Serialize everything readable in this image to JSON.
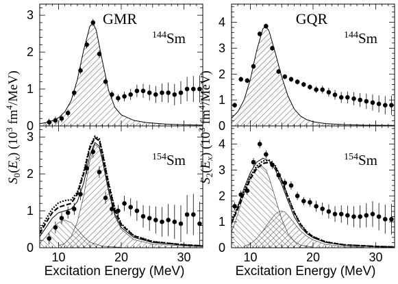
{
  "chart_data": [
    {
      "type": "scatter",
      "panel": "top-left",
      "title": "GMR",
      "annotation": {
        "mass": "144",
        "element": "Sm"
      },
      "xlim": [
        7,
        33
      ],
      "ylim": [
        0,
        3.3
      ],
      "yticks": [
        "0",
        "1",
        "2",
        "3"
      ],
      "series": [
        {
          "name": "",
          "kind": "points",
          "x": [
            8.5,
            9.5,
            10.5,
            11.5,
            12.5,
            13.5,
            14.5,
            15.5,
            16.5,
            17.5,
            18.5,
            19.5,
            20.5,
            21.5,
            22.5,
            23.5,
            24.5,
            25.5,
            26.5,
            27.5,
            28.5,
            29.5,
            30.5,
            31.5,
            32.5
          ],
          "y": [
            0.1,
            0.15,
            0.2,
            0.35,
            0.9,
            1.5,
            2.2,
            2.8,
            1.95,
            1.2,
            0.85,
            0.75,
            0.8,
            0.85,
            0.95,
            0.95,
            0.9,
            0.85,
            0.9,
            0.9,
            0.85,
            0.9,
            1.0,
            1.0,
            1.0
          ]
        },
        {
          "name": "",
          "kind": "fit",
          "x": [
            7,
            8,
            9,
            10,
            11,
            12,
            13,
            14,
            15,
            15.5,
            16,
            17,
            18,
            19,
            20,
            22,
            24,
            27,
            30,
            33
          ],
          "y": [
            0.06,
            0.09,
            0.14,
            0.22,
            0.38,
            0.68,
            1.25,
            2.05,
            2.7,
            2.78,
            2.6,
            1.75,
            0.95,
            0.5,
            0.3,
            0.15,
            0.09,
            0.05,
            0.03,
            0.02
          ]
        }
      ]
    },
    {
      "type": "scatter",
      "panel": "top-right",
      "title": "GQR",
      "annotation": {
        "mass": "144",
        "element": "Sm"
      },
      "xlim": [
        7,
        33
      ],
      "ylim": [
        0,
        4.7
      ],
      "yticks": [
        "0",
        "1",
        "2",
        "3",
        "4"
      ],
      "series": [
        {
          "name": "",
          "kind": "points",
          "x": [
            7.5,
            8.5,
            9.5,
            10.5,
            11.5,
            12.5,
            13.5,
            14.5,
            15.5,
            16.5,
            17.5,
            18.5,
            19.5,
            20.5,
            21.5,
            22.5,
            23.5,
            24.5,
            25.5,
            26.5,
            27.5,
            28.5,
            29.5,
            30.5,
            31.5,
            32.5
          ],
          "y": [
            0.8,
            1.8,
            1.75,
            2.3,
            3.55,
            3.85,
            3.0,
            2.1,
            1.9,
            1.8,
            1.7,
            1.6,
            1.5,
            1.4,
            1.4,
            1.3,
            1.2,
            1.1,
            1.1,
            1.05,
            1.0,
            0.95,
            0.9,
            0.85,
            0.8,
            0.8
          ]
        },
        {
          "name": "",
          "kind": "fit",
          "x": [
            7,
            8,
            9,
            10,
            11,
            12,
            12.5,
            13,
            14,
            15,
            16,
            17,
            18,
            19,
            20,
            22,
            25,
            28,
            33
          ],
          "y": [
            0.3,
            0.55,
            1.0,
            1.8,
            2.9,
            3.75,
            3.85,
            3.65,
            2.8,
            1.9,
            1.15,
            0.65,
            0.38,
            0.24,
            0.16,
            0.09,
            0.05,
            0.03,
            0.02
          ]
        }
      ]
    },
    {
      "type": "scatter",
      "panel": "bottom-left",
      "annotation": {
        "mass": "154",
        "element": "Sm"
      },
      "ylabel": "S0(Ex) (10^3 fm^4/MeV)",
      "xlabel": "Excitation Energy (MeV)",
      "xlim": [
        7,
        33
      ],
      "ylim": [
        0,
        3.3
      ],
      "xticks": [
        "10",
        "20",
        "30"
      ],
      "yticks": [
        "0",
        "1",
        "2",
        "3"
      ],
      "series": [
        {
          "name": "",
          "kind": "points",
          "x": [
            8.5,
            9.5,
            10.5,
            11.5,
            12.5,
            13.5,
            14.5,
            15.5,
            16.5,
            17.5,
            18.5,
            19.5,
            20.5,
            21.5,
            22.5,
            23.5,
            24.5,
            25.5,
            26.5,
            27.5,
            28.5,
            29.5,
            30.5,
            31.5,
            32.5
          ],
          "y": [
            0.25,
            0.55,
            0.8,
            0.95,
            1.05,
            1.45,
            2.15,
            2.6,
            2.05,
            1.35,
            1.05,
            1.0,
            1.2,
            1.1,
            1.0,
            0.85,
            0.8,
            0.75,
            0.7,
            0.75,
            0.7,
            0.65,
            0.9,
            0.9,
            0.65
          ]
        },
        {
          "name": "",
          "kind": "component-1",
          "x": [
            7,
            8,
            9,
            10,
            11,
            12,
            13,
            14,
            15,
            17,
            20
          ],
          "y": [
            0.12,
            0.3,
            0.52,
            0.68,
            0.75,
            0.68,
            0.5,
            0.3,
            0.15,
            0.04,
            0.01
          ]
        },
        {
          "name": "",
          "kind": "component-2",
          "x": [
            10,
            11,
            12,
            13,
            14,
            15,
            15.8,
            16.5,
            17,
            18,
            19,
            20,
            22,
            25,
            30,
            33
          ],
          "y": [
            0.05,
            0.12,
            0.3,
            0.7,
            1.4,
            2.35,
            2.8,
            2.7,
            2.35,
            1.5,
            0.85,
            0.5,
            0.22,
            0.1,
            0.05,
            0.03
          ]
        },
        {
          "name": "",
          "kind": "sum",
          "x": [
            7,
            8,
            9,
            10,
            11,
            12,
            13,
            14,
            15,
            15.8,
            16.5,
            17,
            18,
            19,
            20,
            22,
            25,
            30,
            33
          ],
          "y": [
            0.3,
            0.55,
            0.8,
            0.95,
            1.0,
            1.05,
            1.25,
            1.75,
            2.5,
            2.85,
            2.75,
            2.4,
            1.55,
            0.9,
            0.55,
            0.28,
            0.14,
            0.07,
            0.05
          ]
        },
        {
          "name": "",
          "kind": "dashed",
          "x": [
            7,
            8,
            9,
            10,
            11,
            12,
            13,
            14,
            15,
            15.8,
            16.5,
            17,
            18,
            19,
            20,
            22,
            25,
            30,
            33
          ],
          "y": [
            0.38,
            0.68,
            0.95,
            1.1,
            1.15,
            1.2,
            1.45,
            2.0,
            2.7,
            2.98,
            2.9,
            2.55,
            1.7,
            1.0,
            0.62,
            0.32,
            0.16,
            0.08,
            0.05
          ]
        },
        {
          "name": "",
          "kind": "dotted",
          "x": [
            7,
            8,
            9,
            10,
            11,
            12,
            13,
            14,
            15,
            15.8,
            16.5,
            17,
            18,
            19,
            20,
            22,
            25,
            30,
            33
          ],
          "y": [
            0.45,
            0.78,
            1.05,
            1.22,
            1.28,
            1.3,
            1.5,
            2.05,
            2.75,
            3.02,
            2.95,
            2.6,
            1.75,
            1.05,
            0.65,
            0.33,
            0.17,
            0.08,
            0.05
          ]
        }
      ]
    },
    {
      "type": "scatter",
      "panel": "bottom-right",
      "annotation": {
        "mass": "154",
        "element": "Sm"
      },
      "ylabel": "S2(Ex) (10^3 fm^4/MeV)",
      "xlabel": "Excitation Energy (MeV)",
      "xlim": [
        7,
        33
      ],
      "ylim": [
        0,
        4.7
      ],
      "xticks": [
        "10",
        "20",
        "30"
      ],
      "yticks": [
        "0",
        "1",
        "2",
        "3",
        "4"
      ],
      "series": [
        {
          "name": "",
          "kind": "points",
          "x": [
            7.5,
            8.5,
            9.5,
            10.5,
            11.5,
            12.5,
            13.5,
            14.5,
            15.5,
            16.5,
            17.5,
            18.5,
            19.5,
            20.5,
            21.5,
            22.5,
            23.5,
            24.5,
            25.5,
            26.5,
            27.5,
            28.5,
            29.5,
            30.5,
            31.5,
            32.5
          ],
          "y": [
            1.6,
            2.05,
            2.2,
            3.3,
            4.0,
            3.6,
            3.2,
            2.8,
            2.5,
            2.4,
            2.0,
            1.8,
            1.75,
            1.6,
            1.5,
            1.4,
            1.3,
            1.3,
            1.25,
            1.2,
            1.2,
            1.25,
            1.3,
            1.2,
            1.1,
            1.1
          ]
        },
        {
          "name": "",
          "kind": "component-1",
          "x": [
            7,
            8,
            9,
            10,
            11,
            11.8,
            12.5,
            13,
            14,
            15,
            16,
            17,
            18,
            20
          ],
          "y": [
            0.6,
            1.3,
            2.1,
            2.8,
            3.1,
            3.15,
            3.0,
            2.7,
            1.9,
            1.1,
            0.55,
            0.25,
            0.1,
            0.02
          ]
        },
        {
          "name": "",
          "kind": "component-2",
          "x": [
            9,
            10,
            11,
            12,
            13,
            14,
            14.8,
            15.5,
            16,
            17,
            18,
            19,
            20,
            22,
            25,
            28
          ],
          "y": [
            0.05,
            0.15,
            0.35,
            0.65,
            1.0,
            1.3,
            1.42,
            1.38,
            1.25,
            0.95,
            0.65,
            0.45,
            0.3,
            0.13,
            0.05,
            0.02
          ]
        },
        {
          "name": "",
          "kind": "sum",
          "x": [
            7,
            8,
            9,
            10,
            11,
            12,
            13,
            14,
            15,
            16,
            17,
            18,
            19,
            20,
            22,
            25,
            30,
            33
          ],
          "y": [
            0.9,
            1.6,
            2.3,
            2.9,
            3.3,
            3.45,
            3.35,
            3.0,
            2.45,
            1.8,
            1.2,
            0.8,
            0.55,
            0.38,
            0.2,
            0.1,
            0.05,
            0.03
          ]
        },
        {
          "name": "",
          "kind": "dashed",
          "x": [
            7,
            8,
            9,
            10,
            11,
            12,
            13,
            14,
            15,
            16,
            17,
            18,
            19,
            20,
            22,
            25,
            30,
            33
          ],
          "y": [
            0.95,
            1.5,
            2.1,
            2.65,
            3.05,
            3.25,
            3.3,
            3.1,
            2.6,
            1.95,
            1.35,
            0.9,
            0.6,
            0.42,
            0.22,
            0.11,
            0.05,
            0.03
          ]
        },
        {
          "name": "",
          "kind": "dotted",
          "x": [
            7,
            8,
            9,
            10,
            11,
            12,
            13,
            14,
            15,
            16,
            17,
            18,
            19,
            20,
            22,
            25,
            30,
            33
          ],
          "y": [
            1.05,
            1.6,
            2.2,
            2.75,
            3.15,
            3.35,
            3.38,
            3.15,
            2.62,
            1.98,
            1.38,
            0.92,
            0.62,
            0.43,
            0.23,
            0.11,
            0.05,
            0.03
          ]
        }
      ]
    }
  ],
  "axis_title_left": "S0(Ex) (10^3 fm^4/MeV)",
  "axis_title_right": "S2(Ex) (10^3 fm^4/MeV)",
  "x_title": "Excitation Energy (MeV)"
}
